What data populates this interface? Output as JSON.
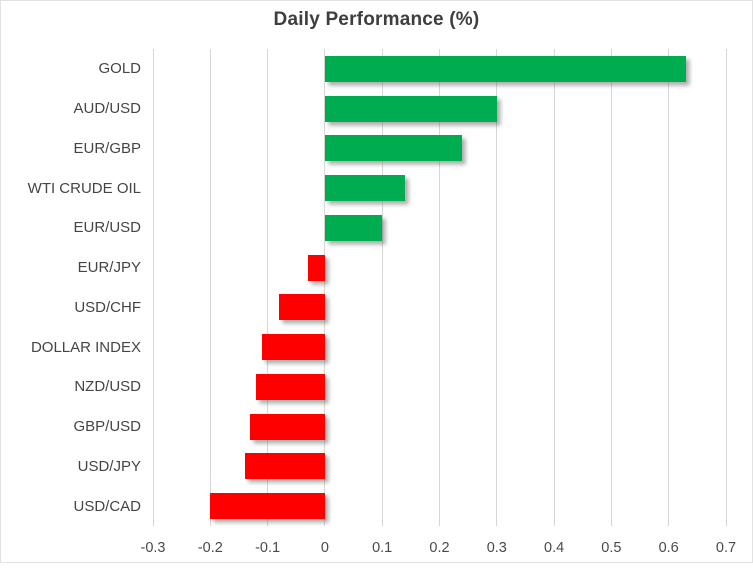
{
  "chart_data": {
    "type": "bar",
    "orientation": "horizontal",
    "title": "Daily Performance (%)",
    "categories": [
      "GOLD",
      "AUD/USD",
      "EUR/GBP",
      "WTI CRUDE OIL",
      "EUR/USD",
      "EUR/JPY",
      "USD/CHF",
      "DOLLAR INDEX",
      "NZD/USD",
      "GBP/USD",
      "USD/JPY",
      "USD/CAD"
    ],
    "values": [
      0.63,
      0.3,
      0.24,
      0.14,
      0.1,
      -0.03,
      -0.08,
      -0.11,
      -0.12,
      -0.13,
      -0.14,
      -0.2
    ],
    "xlim": [
      -0.3,
      0.7
    ],
    "xticks": [
      -0.3,
      -0.2,
      -0.1,
      0,
      0.1,
      0.2,
      0.3,
      0.4,
      0.5,
      0.6,
      0.7
    ],
    "xtick_labels": [
      "-0.3",
      "-0.2",
      "-0.1",
      "0",
      "0.1",
      "0.2",
      "0.3",
      "0.4",
      "0.5",
      "0.6",
      "0.7"
    ],
    "grid": "vertical-gridlines-on",
    "legend": "none",
    "colors": {
      "positive_bar": "#00AC50",
      "negative_bar": "#FF0000",
      "gridline": "#D6D6D6",
      "title_text": "#3E3E3E",
      "axis_text": "#4A4A4A",
      "chart_border": "#E2E2E2"
    }
  }
}
